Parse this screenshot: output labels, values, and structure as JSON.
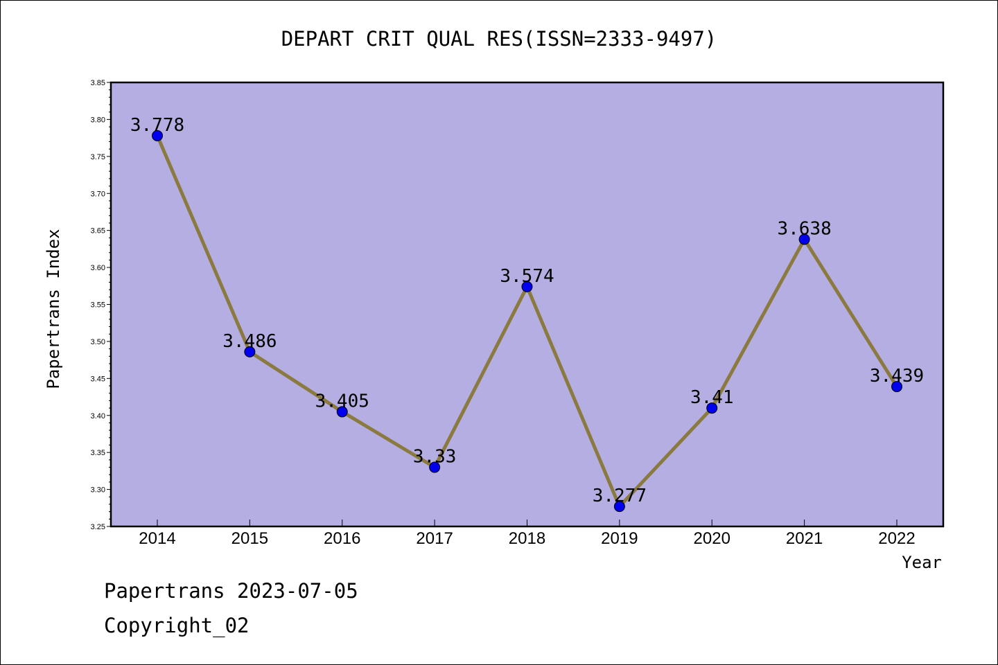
{
  "chart_data": {
    "type": "line",
    "title": "DEPART CRIT QUAL RES(ISSN=2333-9497)",
    "xlabel": "Year",
    "ylabel": "Papertrans Index",
    "categories": [
      "2014",
      "2015",
      "2016",
      "2017",
      "2018",
      "2019",
      "2020",
      "2021",
      "2022"
    ],
    "series": [
      {
        "values": [
          3.778,
          3.486,
          3.405,
          3.33,
          3.574,
          3.277,
          3.41,
          3.638,
          3.439
        ],
        "data_labels": [
          "3.778",
          "3.486",
          "3.405",
          "3.33",
          "3.574",
          "3.277",
          "3.41",
          "3.638",
          "3.439"
        ]
      }
    ],
    "ylim": [
      3.25,
      3.85
    ],
    "yticks": [
      "3.25",
      "3.30",
      "3.35",
      "3.40",
      "3.45",
      "3.50",
      "3.55",
      "3.60",
      "3.65",
      "3.70",
      "3.75",
      "3.80",
      "3.85"
    ],
    "grid": false,
    "colors": {
      "plot_background": "#b5aee2",
      "line": "#8b7a3f",
      "marker": "#0000ee"
    }
  },
  "footer": {
    "line1": "Papertrans 2023-07-05",
    "line2": "Copyright_02"
  }
}
